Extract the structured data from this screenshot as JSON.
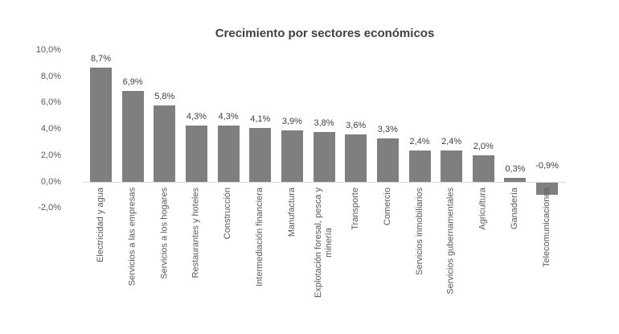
{
  "chart_data": {
    "type": "bar",
    "title": "Crecimiento por sectores económicos",
    "categories": [
      "Electricidad y agua",
      "Servicios a las empresas",
      "Servicios a los hogares",
      "Restaurantes y hoteles",
      "Construcción",
      "Intermediación financiera",
      "Manufactura",
      "Explotación foresal, pesca y\nminería",
      "Transporte",
      "Comercio",
      "Servicios inmobiliarios",
      "Servicios gubernamentales",
      "Agricultura",
      "Ganadería",
      "Telecomunicaciones"
    ],
    "values": [
      8.7,
      6.9,
      5.8,
      4.3,
      4.3,
      4.1,
      3.9,
      3.8,
      3.6,
      3.3,
      2.4,
      2.4,
      2.0,
      0.3,
      -0.9
    ],
    "value_labels": [
      "8,7%",
      "6,9%",
      "5,8%",
      "4,3%",
      "4,3%",
      "4,1%",
      "3,9%",
      "3,8%",
      "3,6%",
      "3,3%",
      "2,4%",
      "2,4%",
      "2,0%",
      "0,3%",
      "-0,9%"
    ],
    "y_ticks": [
      {
        "value": 10,
        "label": "10,0%"
      },
      {
        "value": 8,
        "label": "8,0%"
      },
      {
        "value": 6,
        "label": "6,0%"
      },
      {
        "value": 4,
        "label": "4,0%"
      },
      {
        "value": 2,
        "label": "2,0%"
      },
      {
        "value": 0,
        "label": "0,0%"
      },
      {
        "value": -2,
        "label": "-2,0%"
      }
    ],
    "ylim": [
      -2,
      10
    ],
    "xlabel": "",
    "ylabel": "",
    "legend": "none",
    "gridlines": "none",
    "colors": {
      "bar": "#7f7f7f",
      "title": "#404040",
      "data_label": "#404040",
      "axis_label": "#595959",
      "axis_line": "#d9d9d9",
      "background": "#ffffff"
    }
  }
}
